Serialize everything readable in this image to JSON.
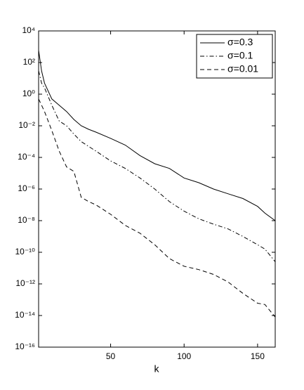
{
  "chart_data": {
    "type": "line",
    "xlabel": "k",
    "log_y": true,
    "xlim": [
      1,
      162
    ],
    "xticks": [
      50,
      100,
      150
    ],
    "ylim": [
      1e-16,
      10000
    ],
    "yticks": [
      {
        "value": 10000,
        "label": "10⁴"
      },
      {
        "value": 100,
        "label": "10²"
      },
      {
        "value": 1,
        "label": "10⁰"
      },
      {
        "value": 0.01,
        "label": "10⁻²"
      },
      {
        "value": 0.0001,
        "label": "10⁻⁴"
      },
      {
        "value": 1e-06,
        "label": "10⁻⁶"
      },
      {
        "value": 1e-08,
        "label": "10⁻⁸"
      },
      {
        "value": 1e-10,
        "label": "10⁻¹⁰"
      },
      {
        "value": 1e-12,
        "label": "10⁻¹²"
      },
      {
        "value": 1e-14,
        "label": "10⁻¹⁴"
      },
      {
        "value": 1e-16,
        "label": "10⁻¹⁶"
      }
    ],
    "legend": "upper right",
    "x": [
      1,
      3,
      5,
      10,
      15,
      20,
      25,
      30,
      35,
      40,
      50,
      60,
      70,
      80,
      90,
      100,
      110,
      120,
      130,
      140,
      150,
      155,
      162
    ],
    "series": [
      {
        "name": "σ=0.3",
        "color": "#000000",
        "linestyle": "solid",
        "values": [
          600,
          30,
          5,
          0.5,
          0.2,
          0.08,
          0.025,
          0.01,
          0.006,
          0.004,
          0.0016,
          0.0006,
          0.00013,
          4e-05,
          2e-05,
          5e-06,
          2.5e-06,
          1e-06,
          5e-07,
          2.5e-07,
          8e-08,
          3e-08,
          1e-08
        ]
      },
      {
        "name": "σ=0.1",
        "color": "#000000",
        "linestyle": "dashdot",
        "values": [
          30,
          5,
          2.5,
          0.2,
          0.02,
          0.01,
          0.003,
          0.001,
          0.0005,
          0.00025,
          6e-05,
          2e-05,
          5e-06,
          1e-06,
          1.6e-07,
          4e-08,
          1.3e-08,
          6e-09,
          3e-09,
          1e-09,
          3e-10,
          1.6e-10,
          2.5e-11
        ]
      },
      {
        "name": "σ=0.01",
        "color": "#000000",
        "linestyle": "dashed",
        "values": [
          0.5,
          0.2,
          0.08,
          0.005,
          0.00025,
          2.5e-05,
          1.3e-05,
          3e-07,
          1.6e-07,
          1e-07,
          2.5e-08,
          5e-09,
          1.6e-09,
          3e-10,
          4e-11,
          1.3e-11,
          8e-12,
          4e-12,
          1.3e-12,
          2.5e-13,
          6e-14,
          5e-14,
          8e-15
        ]
      }
    ]
  }
}
